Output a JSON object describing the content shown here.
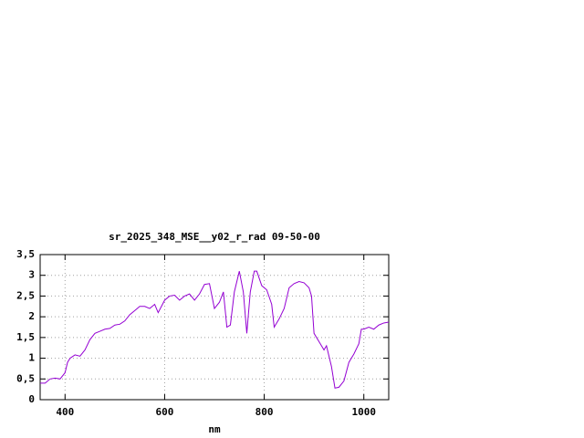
{
  "chart_data": {
    "type": "line",
    "title": "sr_2025_348_MSE__y02_r_rad 09-50-00",
    "x_label": "nm",
    "x": [
      350,
      360,
      370,
      380,
      390,
      400,
      405,
      410,
      420,
      430,
      440,
      450,
      460,
      470,
      480,
      490,
      500,
      510,
      520,
      530,
      540,
      550,
      560,
      570,
      580,
      587,
      600,
      610,
      620,
      630,
      640,
      650,
      660,
      670,
      680,
      690,
      700,
      710,
      718,
      725,
      732,
      740,
      750,
      758,
      765,
      772,
      780,
      785,
      795,
      805,
      815,
      820,
      830,
      840,
      850,
      860,
      870,
      880,
      890,
      895,
      900,
      910,
      920,
      925,
      935,
      942,
      950,
      960,
      970,
      980,
      990,
      995,
      1000,
      1010,
      1020,
      1030,
      1040,
      1050
    ],
    "series": [
      {
        "name": "sr_2025_348_MSE__y02_r_rad 09-50-00",
        "color": "#9400d3",
        "values": [
          0.4,
          0.4,
          0.5,
          0.52,
          0.5,
          0.65,
          0.9,
          1.0,
          1.08,
          1.05,
          1.2,
          1.45,
          1.6,
          1.65,
          1.7,
          1.72,
          1.8,
          1.82,
          1.9,
          2.05,
          2.15,
          2.25,
          2.25,
          2.2,
          2.3,
          2.1,
          2.4,
          2.5,
          2.52,
          2.4,
          2.5,
          2.55,
          2.4,
          2.55,
          2.78,
          2.8,
          2.2,
          2.35,
          2.6,
          1.75,
          1.8,
          2.6,
          3.1,
          2.6,
          1.6,
          2.6,
          3.1,
          3.1,
          2.75,
          2.65,
          2.3,
          1.75,
          1.95,
          2.2,
          2.7,
          2.8,
          2.85,
          2.82,
          2.7,
          2.5,
          1.6,
          1.4,
          1.2,
          1.3,
          0.8,
          0.28,
          0.3,
          0.45,
          0.9,
          1.1,
          1.35,
          1.7,
          1.7,
          1.75,
          1.7,
          1.8,
          1.85,
          1.87
        ]
      }
    ],
    "xlim": [
      350,
      1050
    ],
    "xticks": [
      400,
      600,
      800,
      1000
    ],
    "ylim": [
      0,
      3.5
    ],
    "yticks": [
      0,
      {
        "value": 0.5,
        "label": "0,5"
      },
      1,
      {
        "value": 1.5,
        "label": "1,5"
      },
      2,
      {
        "value": 2.5,
        "label": "2,5"
      },
      3,
      {
        "value": 3.5,
        "label": "3,5"
      }
    ],
    "grid": true
  }
}
